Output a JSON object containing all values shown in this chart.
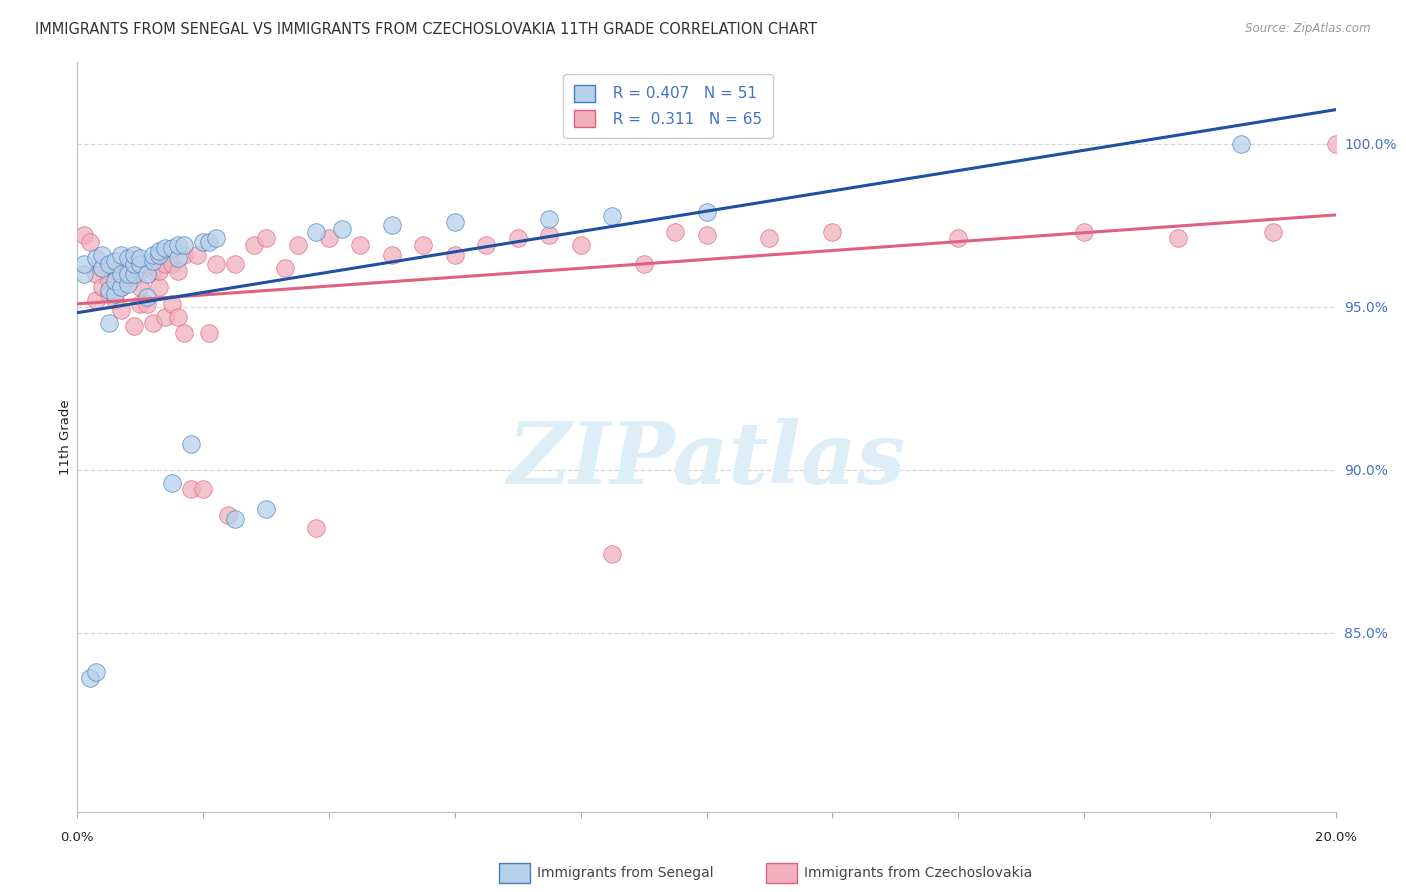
{
  "title": "IMMIGRANTS FROM SENEGAL VS IMMIGRANTS FROM CZECHOSLOVAKIA 11TH GRADE CORRELATION CHART",
  "source": "Source: ZipAtlas.com",
  "ylabel": "11th Grade",
  "yaxis_labels": [
    "100.0%",
    "95.0%",
    "90.0%",
    "85.0%"
  ],
  "yaxis_values": [
    1.0,
    0.95,
    0.9,
    0.85
  ],
  "xmin": 0.0,
  "xmax": 0.2,
  "ymin": 0.795,
  "ymax": 1.025,
  "legend_blue_label": "Immigrants from Senegal",
  "legend_pink_label": "Immigrants from Czechoslovakia",
  "blue_fill": "#b8d0ea",
  "blue_edge": "#4080c0",
  "blue_line": "#2050a0",
  "pink_fill": "#f0b0be",
  "pink_edge": "#e06080",
  "pink_line": "#e06080",
  "watermark_text": "ZIPatlas",
  "watermark_color": "#ddeef8",
  "grid_color": "#d8d8d8",
  "blue_scatter_x": [
    0.001,
    0.001,
    0.002,
    0.003,
    0.003,
    0.004,
    0.004,
    0.005,
    0.005,
    0.005,
    0.006,
    0.006,
    0.006,
    0.007,
    0.007,
    0.007,
    0.008,
    0.008,
    0.008,
    0.009,
    0.009,
    0.009,
    0.01,
    0.01,
    0.011,
    0.011,
    0.012,
    0.012,
    0.013,
    0.013,
    0.014,
    0.015,
    0.015,
    0.016,
    0.016,
    0.017,
    0.018,
    0.02,
    0.021,
    0.022,
    0.025,
    0.03,
    0.038,
    0.042,
    0.05,
    0.06,
    0.075,
    0.085,
    0.1,
    0.185
  ],
  "blue_scatter_y": [
    0.96,
    0.963,
    0.836,
    0.838,
    0.965,
    0.962,
    0.966,
    0.945,
    0.955,
    0.963,
    0.954,
    0.958,
    0.964,
    0.956,
    0.96,
    0.966,
    0.957,
    0.96,
    0.965,
    0.96,
    0.963,
    0.966,
    0.963,
    0.965,
    0.953,
    0.96,
    0.964,
    0.966,
    0.966,
    0.967,
    0.968,
    0.968,
    0.896,
    0.965,
    0.969,
    0.969,
    0.908,
    0.97,
    0.97,
    0.971,
    0.885,
    0.888,
    0.973,
    0.974,
    0.975,
    0.976,
    0.977,
    0.978,
    0.979,
    1.0
  ],
  "pink_scatter_x": [
    0.001,
    0.002,
    0.003,
    0.003,
    0.004,
    0.004,
    0.005,
    0.005,
    0.006,
    0.006,
    0.007,
    0.007,
    0.008,
    0.008,
    0.009,
    0.009,
    0.01,
    0.01,
    0.01,
    0.011,
    0.011,
    0.012,
    0.012,
    0.013,
    0.013,
    0.014,
    0.014,
    0.015,
    0.015,
    0.016,
    0.016,
    0.017,
    0.017,
    0.018,
    0.019,
    0.02,
    0.021,
    0.022,
    0.024,
    0.025,
    0.028,
    0.03,
    0.033,
    0.035,
    0.038,
    0.04,
    0.045,
    0.05,
    0.055,
    0.06,
    0.065,
    0.07,
    0.075,
    0.08,
    0.085,
    0.09,
    0.095,
    0.1,
    0.11,
    0.12,
    0.14,
    0.16,
    0.175,
    0.19,
    0.2
  ],
  "pink_scatter_y": [
    0.972,
    0.97,
    0.952,
    0.96,
    0.956,
    0.962,
    0.958,
    0.954,
    0.952,
    0.961,
    0.949,
    0.956,
    0.959,
    0.961,
    0.944,
    0.959,
    0.951,
    0.956,
    0.961,
    0.951,
    0.963,
    0.945,
    0.961,
    0.956,
    0.961,
    0.947,
    0.963,
    0.951,
    0.963,
    0.947,
    0.961,
    0.942,
    0.966,
    0.894,
    0.966,
    0.894,
    0.942,
    0.963,
    0.886,
    0.963,
    0.969,
    0.971,
    0.962,
    0.969,
    0.882,
    0.971,
    0.969,
    0.966,
    0.969,
    0.966,
    0.969,
    0.971,
    0.972,
    0.969,
    0.874,
    0.963,
    0.973,
    0.972,
    0.971,
    0.973,
    0.971,
    0.973,
    0.971,
    0.973,
    1.0
  ]
}
